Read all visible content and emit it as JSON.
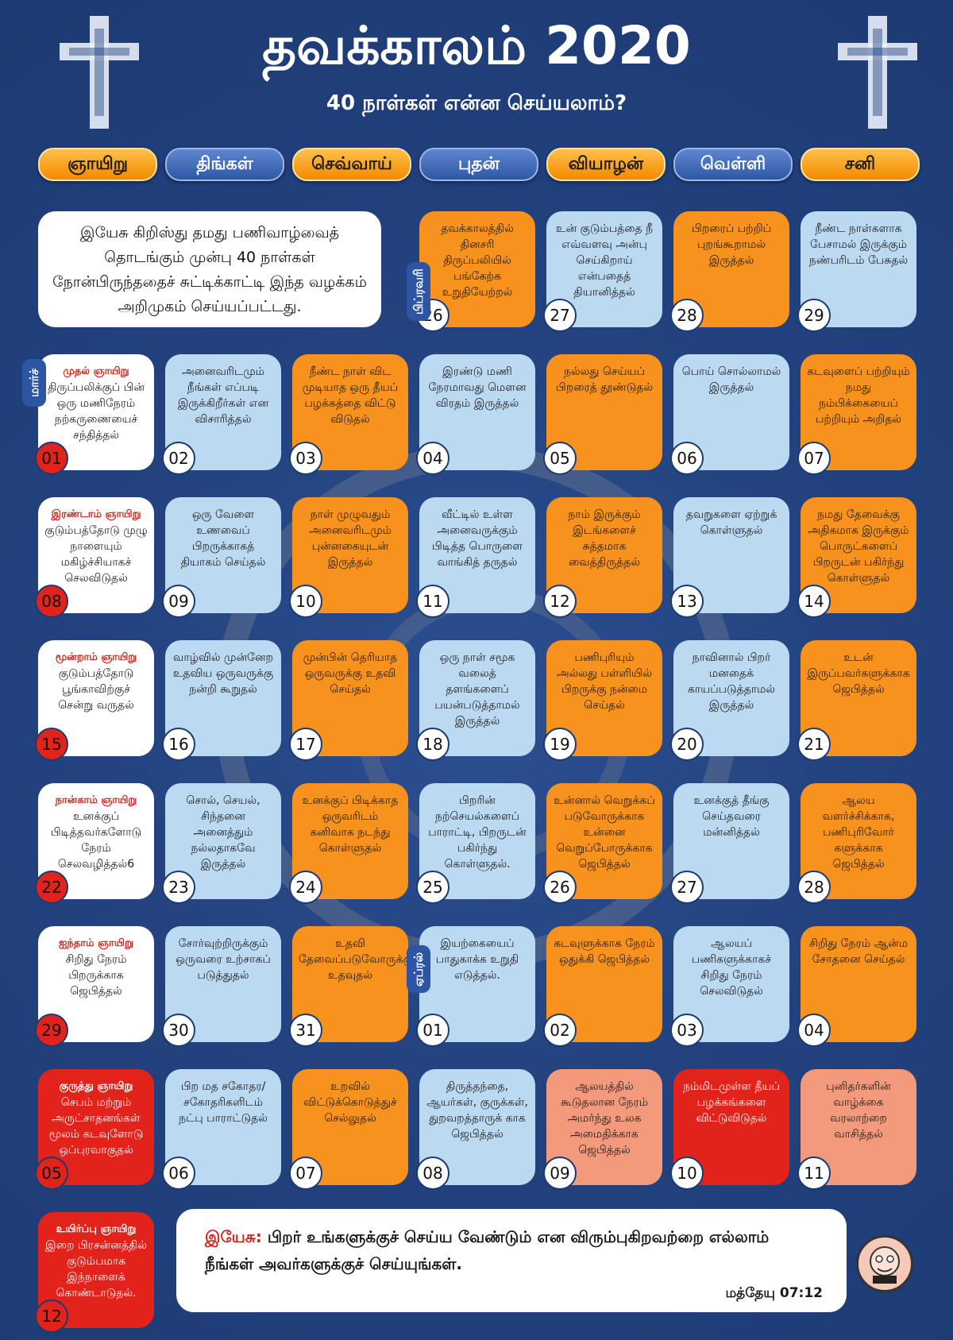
{
  "header": {
    "title": "தவக்காலம் 2020",
    "subtitle": "40  நாள்கள் என்ன செய்யலாம்?"
  },
  "weekdays": [
    "ஞாயிறு",
    "திங்கள்",
    "செவ்வாய்",
    "புதன்",
    "வியாழன்",
    "வெள்ளி",
    "சனி"
  ],
  "intro": "இயேசு கிறிஸ்து தமது பணிவாழ்வைத் தொடங்கும் முன்பு 40 நாள்கள் நோன்பிருந்ததைச் சுட்டிக்காட்டி இந்த வழக்கம் அறிமுகம் செய்யப்பட்டது.",
  "months": {
    "feb": "பிப்ரவரி",
    "mar": "மார்ச்",
    "apr": "ஏப்ரல்"
  },
  "days": [
    {
      "date": "26",
      "color": "orange",
      "text": "தவக்காலத்தில் தினசரி திருப்பலியில் பங்கேற்க உறுதியேற்றல்"
    },
    {
      "date": "27",
      "color": "blue",
      "text": "உன் குடும்பத்தை நீ எவ்வளவு அன்பு செய்கிறாய் என்பதைத் தியானித்தல்"
    },
    {
      "date": "28",
      "color": "orange",
      "text": "பிறரைப் பற்றிப் புறங்கூறாமல் இருத்தல்"
    },
    {
      "date": "29",
      "color": "blue",
      "text": "நீண்ட நாள்களாக பேசாமல் இருக்கும் நண்பரிடம் பேசுதல்"
    },
    {
      "date": "01",
      "color": "white",
      "label": "முதல் ஞாயிறு",
      "text": "திருப்பலிக்குப் பின் ஒரு மணிநேரம் நற்கருணையைச் சந்தித்தல்"
    },
    {
      "date": "02",
      "color": "blue",
      "text": "அனைவரிடமும் நீங்கள் எப்படி இருக்கிறீர்கள் என விசாரித்தல்"
    },
    {
      "date": "03",
      "color": "orange",
      "text": "நீண்ட நாள் விட முடியாத ஒரு தீயப் பழக்கத்தை விட்டு விடுதல்"
    },
    {
      "date": "04",
      "color": "blue",
      "text": "இரண்டு மணி நேரமாவது மௌன விரதம் இருத்தல்"
    },
    {
      "date": "05",
      "color": "orange",
      "text": "நல்லது செய்யப் பிறரைத் தூண்டுதல்"
    },
    {
      "date": "06",
      "color": "blue",
      "text": "பொய் சொல்லாமல் இருத்தல்"
    },
    {
      "date": "07",
      "color": "orange",
      "text": "கடவுளைப் பற்றியும் நமது நம்பிக்கையைப் பற்றியும் அறிதல்"
    },
    {
      "date": "08",
      "color": "white",
      "label": "இரண்டாம் ஞாயிறு",
      "text": "குடும்பத்தோடு முழு நாளையும் மகிழ்ச்சியாகச் செலவிடுதல்"
    },
    {
      "date": "09",
      "color": "blue",
      "text": "ஒரு வேளை உணவைப் பிறருக்காகத் தியாகம் செய்தல்"
    },
    {
      "date": "10",
      "color": "orange",
      "text": "நாள் முழுவதும் அனைவரிடமும் புன்னகையுடன் இருத்தல்"
    },
    {
      "date": "11",
      "color": "blue",
      "text": "வீட்டில் உள்ள அனைவருக்கும் பிடித்த பொருளை வாங்கித் தருதல்"
    },
    {
      "date": "12",
      "color": "orange",
      "text": "நாம் இருக்கும் இடங்களைச் சுத்தமாக வைத்திருத்தல்"
    },
    {
      "date": "13",
      "color": "blue",
      "text": "தவறுகளை ஏற்றுக் கொள்ளுதல்"
    },
    {
      "date": "14",
      "color": "orange",
      "text": "நமது தேவைக்கு அதிகமாக இருக்கும் பொருட்களைப் பிறருடன் பகிர்ந்து கொள்ளுதல்"
    },
    {
      "date": "15",
      "color": "white",
      "label": "மூன்றாம் ஞாயிறு",
      "text": "குடும்பத்தோடு பூங்காவிற்குச் சென்று வருதல்"
    },
    {
      "date": "16",
      "color": "blue",
      "text": "வாழ்வில் முன்னேற உதவிய ஒருவருக்கு நன்றி கூறுதல்"
    },
    {
      "date": "17",
      "color": "orange",
      "text": "முன்பின் தெரியாத ஒருவருக்கு உதவி செய்தல்"
    },
    {
      "date": "18",
      "color": "blue",
      "text": "ஒரு நாள் சமூக வலைத் தளங்களைப் பயன்படுத்தாமல் இருத்தல்"
    },
    {
      "date": "19",
      "color": "orange",
      "text": "பணிபுரியும் அல்லது பள்ளியில் பிறருக்கு நன்மை செய்தல்"
    },
    {
      "date": "20",
      "color": "blue",
      "text": "நாவினால் பிறர் மனதைக் காயப்படுத்தாமல் இருத்தல்"
    },
    {
      "date": "21",
      "color": "orange",
      "text": "உடன் இருப்பவர்களுக்காக ஜெபித்தல்"
    },
    {
      "date": "22",
      "color": "white",
      "label": "நான்காம் ஞாயிறு",
      "text": "உனக்குப் பிடித்தவர்களோடு நேரம் செலவழித்தல்6"
    },
    {
      "date": "23",
      "color": "blue",
      "text": "சொல், செயல், சிந்தனை அனைத்தும் நல்லதாகவே இருத்தல்"
    },
    {
      "date": "24",
      "color": "orange",
      "text": "உனக்குப் பிடிக்காத ஒருவரிடம் கனிவாக நடந்து கொள்ளுதல்"
    },
    {
      "date": "25",
      "color": "blue",
      "text": "பிறரின் நற்செயல்களைப் பாராட்டி, பிறருடன் பகிர்ந்து கொள்ளுதல்."
    },
    {
      "date": "26",
      "color": "orange",
      "text": "உன்னால் வெறுக்கப் படுவோருக்காக உன்னை வெறுப்போருக்காக ஜெபித்தல்"
    },
    {
      "date": "27",
      "color": "blue",
      "text": "உனக்குத் தீங்கு செய்தவரை மன்னித்தல்"
    },
    {
      "date": "28",
      "color": "orange",
      "text": "ஆலய வளர்ச்சிக்காக, பணிபுரிவோர் களுக்காக ஜெபித்தல்"
    },
    {
      "date": "29",
      "color": "white",
      "label": "ஐந்தாம் ஞாயிறு",
      "text": "சிறிது நேரம் பிறருக்காக ஜெபித்தல்"
    },
    {
      "date": "30",
      "color": "blue",
      "text": "சோர்வுற்றிருக்கும் ஒருவரை உற்சாகப் படுத்துதல்"
    },
    {
      "date": "31",
      "color": "orange",
      "text": "உதவி தேவைப்படுவோருக்கு உதவுதல்"
    },
    {
      "date": "01",
      "color": "blue",
      "text": "இயற்கையைப் பாதுகாக்க உறுதி எடுத்தல்."
    },
    {
      "date": "02",
      "color": "orange",
      "text": "கடவுளுக்காக நேரம் ஒதுக்கி ஜெபித்தல்"
    },
    {
      "date": "03",
      "color": "blue",
      "text": "ஆலயப் பணிகளுக்காகச் சிறிது நேரம் செலவிடுதல்"
    },
    {
      "date": "04",
      "color": "orange",
      "text": "சிறிது நேரம் ஆன்ம சோதனை செய்தல்"
    },
    {
      "date": "05",
      "color": "red",
      "label": "குருத்து ஞாயிறு",
      "text": "செபம் மற்றும் அருட்சாதனங்கள் மூலம் கடவுளோடு ஒப்புரவாகுதல்"
    },
    {
      "date": "06",
      "color": "blue",
      "text": "பிற மத சகோதர/ சகோதரிகளிடம் நட்பு பாராட்டுதல்"
    },
    {
      "date": "07",
      "color": "orange",
      "text": "உறவில் விட்டுக்கொடுத்துச் செல்லுதல்"
    },
    {
      "date": "08",
      "color": "blue",
      "text": "திருத்தந்தை, ஆயர்கள், குருக்கள், துறவறத்தாருக் காக ஜெபித்தல்"
    },
    {
      "date": "09",
      "color": "salmon",
      "text": "ஆலயத்தில் கூடுதலான நேரம் அமர்ந்து உலக அமைதிக்காக ஜெபித்தல்"
    },
    {
      "date": "10",
      "color": "red",
      "text": "நம்மிடமுள்ள தீயப் பழக்கங்களை விட்டுவிடுதல்"
    },
    {
      "date": "11",
      "color": "salmon",
      "text": "புனிதர்களின் வாழ்க்கை வரலாற்றை வாசித்தல்"
    },
    {
      "date": "12",
      "color": "red",
      "label": "உயிர்ப்பு ஞாயிறு",
      "text": "இறை பிரசன்னத்தில் குடும்பமாக இந்நாளைக் கொண்டாடுதல்."
    }
  ],
  "quote": {
    "label": "இயேசு:",
    "text": "பிறர் உங்களுக்குச் செய்ய வேண்டும் என விரும்புகிறவற்றை எல்லாம் நீங்கள் அவர்களுக்குச் செய்யுங்கள்.",
    "reference": "மத்தேயு  07:12"
  }
}
